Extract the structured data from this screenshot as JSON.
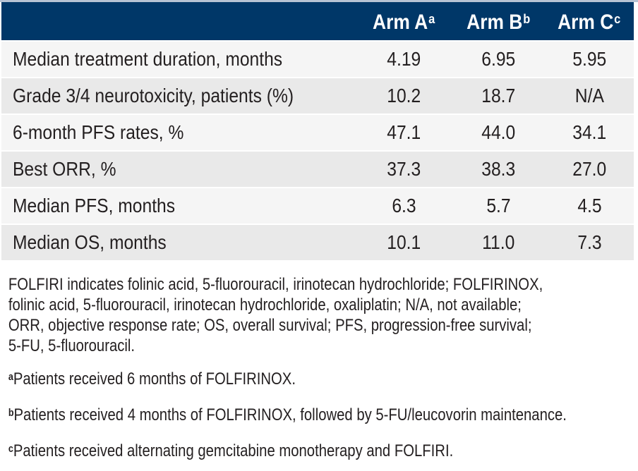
{
  "table": {
    "columns": [
      {
        "label": "Arm A",
        "marker": "a"
      },
      {
        "label": "Arm B",
        "marker": "b"
      },
      {
        "label": "Arm C",
        "marker": "c"
      }
    ],
    "rows": [
      {
        "label": "Median treatment duration, months",
        "values": [
          "4.19",
          "6.95",
          "5.95"
        ]
      },
      {
        "label": "Grade 3/4 neurotoxicity, patients (%)",
        "values": [
          "10.2",
          "18.7",
          "N/A"
        ]
      },
      {
        "label": "6-month PFS rates, %",
        "values": [
          "47.1",
          "44.0",
          "34.1"
        ]
      },
      {
        "label": "Best ORR, %",
        "values": [
          "37.3",
          "38.3",
          "27.0"
        ]
      },
      {
        "label": "Median PFS, months",
        "values": [
          "6.3",
          "5.7",
          "4.5"
        ]
      },
      {
        "label": "Median OS, months",
        "values": [
          "10.1",
          "11.0",
          "7.3"
        ]
      }
    ]
  },
  "abbreviations": {
    "lines": [
      "FOLFIRI indicates folinic acid, 5-fluorouracil, irinotecan hydrochloride; FOLFIRINOX,",
      "folinic acid, 5-fluorouracil, irinotecan hydrochloride, oxaliplatin; N/A, not available;",
      "ORR, objective response rate; OS, overall survival; PFS, progression-free survival;",
      "5-FU, 5-fluorouracil."
    ],
    "full_text": "FOLFIRI indicates folinic acid, 5-fluorouracil, irinotecan hydrochloride; FOLFIRINOX, folinic acid, 5-fluorouracil, irinotecan hydrochloride, oxaliplatin; N/A, not available; ORR, objective response rate; OS, overall survival; PFS, progression-free survival; 5-FU, 5-fluorouracil."
  },
  "footnotes": [
    {
      "marker": "a",
      "text": "Patients received 6 months of FOLFIRINOX."
    },
    {
      "marker": "b",
      "text": "Patients received 4 months of FOLFIRINOX, followed by 5-FU/leucovorin maintenance."
    },
    {
      "marker": "c",
      "text": "Patients received alternating gemcitabine monotherapy and FOLFIRI."
    }
  ],
  "colors": {
    "header_bg": "#003768",
    "header_text": "#ffffff",
    "row_light": "#f5f5f5",
    "row_dark": "#e9e9e9",
    "body_text": "#231f20",
    "top_rule": "#b7c3d4"
  }
}
